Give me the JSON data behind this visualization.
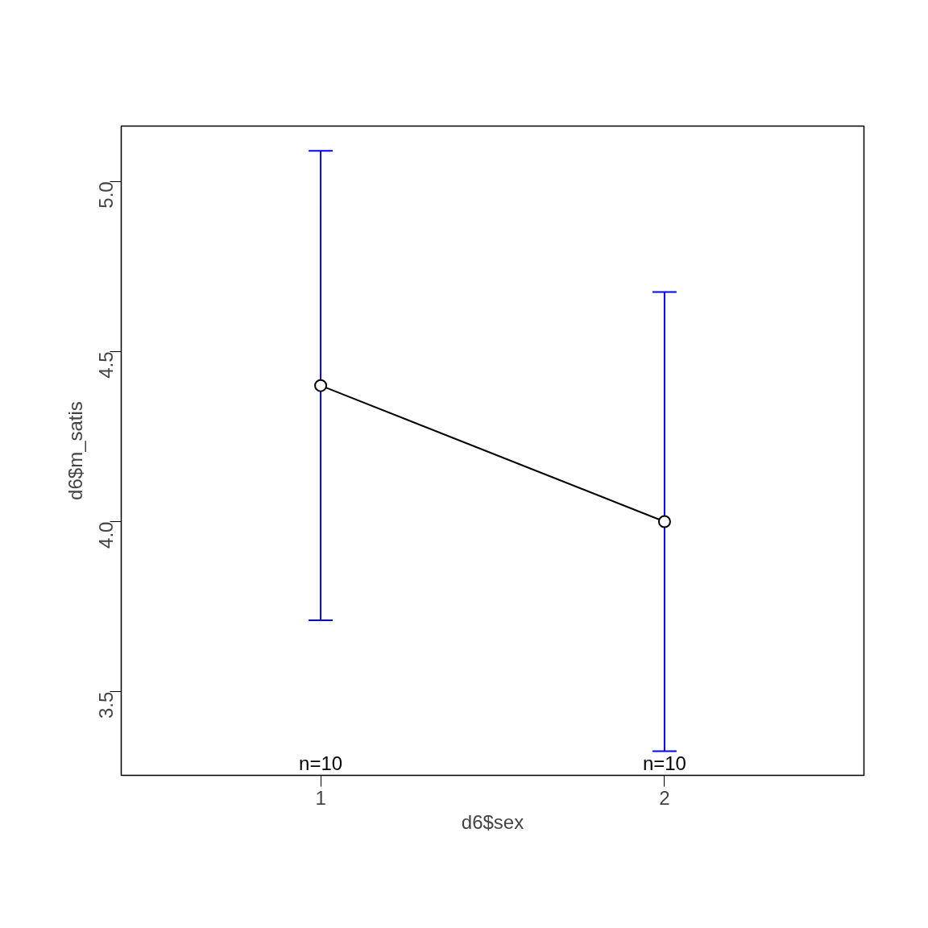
{
  "chart_data": {
    "type": "line",
    "xlabel": "d6$sex",
    "ylabel": "d6$m_satis",
    "x": [
      1,
      2
    ],
    "series": [
      {
        "color": "#000000",
        "values": [
          4.4,
          4.0
        ],
        "errors": [
          0.69,
          0.675
        ]
      }
    ],
    "marker": "circle",
    "line_style": "solid",
    "grid": false,
    "xlim": [
      0.42,
      2.58
    ],
    "xticks": [
      1,
      2
    ],
    "ylim": [
      3.254,
      5.163
    ],
    "yticks": [
      {
        "value": 3.5,
        "label": "3.5"
      },
      {
        "value": 4.0,
        "label": "4.0"
      },
      {
        "value": 4.5,
        "label": "4.5"
      },
      {
        "value": 5.0,
        "label": "5.0"
      }
    ],
    "annotations": [
      "n=10",
      "n=10"
    ]
  }
}
